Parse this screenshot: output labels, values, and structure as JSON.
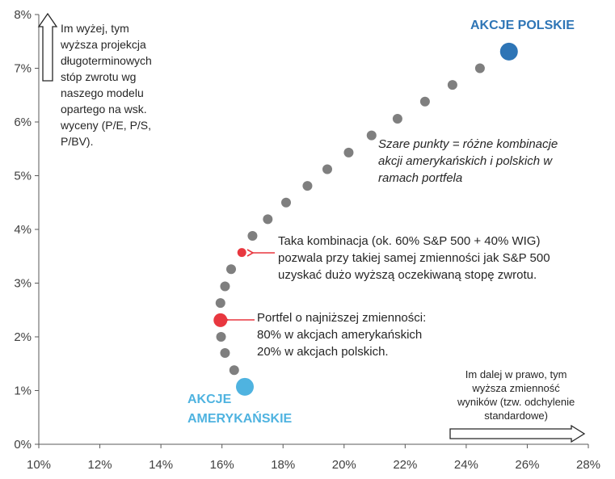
{
  "colors": {
    "grey_point": "#7f7f7f",
    "red_point": "#e8373f",
    "polish": "#2e75b6",
    "american": "#4fb3e0",
    "axis": "#595959",
    "text": "#262626"
  },
  "chart_data": {
    "type": "scatter",
    "xlabel": "",
    "ylabel": "",
    "xlim": [
      10,
      28
    ],
    "ylim": [
      0,
      8
    ],
    "x_ticks": [
      "10%",
      "12%",
      "14%",
      "16%",
      "18%",
      "20%",
      "22%",
      "24%",
      "26%",
      "28%"
    ],
    "y_ticks": [
      "0%",
      "1%",
      "2%",
      "3%",
      "4%",
      "5%",
      "6%",
      "7%",
      "8%"
    ],
    "grid": false,
    "series": [
      {
        "name": "Szare punkty (kombinacje portfela)",
        "color": "#7f7f7f",
        "points": [
          {
            "x": 16.4,
            "y": 1.38
          },
          {
            "x": 16.1,
            "y": 1.7
          },
          {
            "x": 15.97,
            "y": 2.0
          },
          {
            "x": 15.95,
            "y": 2.63
          },
          {
            "x": 16.1,
            "y": 2.94
          },
          {
            "x": 16.3,
            "y": 3.26
          },
          {
            "x": 17.0,
            "y": 3.88
          },
          {
            "x": 17.5,
            "y": 4.19
          },
          {
            "x": 18.1,
            "y": 4.5
          },
          {
            "x": 18.8,
            "y": 4.81
          },
          {
            "x": 19.45,
            "y": 5.12
          },
          {
            "x": 20.15,
            "y": 5.43
          },
          {
            "x": 20.9,
            "y": 5.75
          },
          {
            "x": 21.75,
            "y": 6.06
          },
          {
            "x": 22.65,
            "y": 6.38
          },
          {
            "x": 23.55,
            "y": 6.69
          },
          {
            "x": 24.45,
            "y": 7.0
          }
        ]
      },
      {
        "name": "Portfel o najniższej zmienności",
        "color": "#e8373f",
        "points": [
          {
            "x": 15.95,
            "y": 2.31
          }
        ]
      },
      {
        "name": "Kombinacja ok. 60% S&P 500 + 40% WIG",
        "color": "#e8373f",
        "points": [
          {
            "x": 16.65,
            "y": 3.57
          }
        ]
      },
      {
        "name": "AKCJE POLSKIE",
        "color": "#2e75b6",
        "points": [
          {
            "x": 25.4,
            "y": 7.31
          }
        ]
      },
      {
        "name": "AKCJE AMERYKAŃSKIE",
        "color": "#4fb3e0",
        "points": [
          {
            "x": 16.75,
            "y": 1.07
          }
        ]
      }
    ]
  },
  "labels": {
    "polish": "AKCJE POLSKIE",
    "american_1": "AKCJE",
    "american_2": "AMERYKAŃSKIE"
  },
  "notes": {
    "up_arrow": [
      "Im wyżej, tym",
      "wyższa projekcja",
      "długoterminowych",
      "stóp zwrotu wg",
      "naszego modelu",
      "opartego na wsk.",
      "wyceny (P/E, P/S,",
      "P/BV)."
    ],
    "grey_points": [
      "Szare punkty = różne kombinacje",
      "akcji amerykańskich i polskich w",
      "ramach portfela"
    ],
    "combination": [
      "Taka kombinacja (ok. 60% S&P 500 + 40% WIG)",
      "pozwala przy takiej samej zmienności jak S&P 500",
      "uzyskać dużo wyższą oczekiwaną stopę zwrotu."
    ],
    "min_vol": [
      "Portfel o najniższej zmienności:",
      "80% w akcjach amerykańskich",
      "20% w akcjach polskich."
    ],
    "right_arrow": [
      "Im dalej w prawo, tym",
      "wyższa zmienność",
      "wyników (tzw. odchylenie",
      "standardowe)"
    ]
  }
}
